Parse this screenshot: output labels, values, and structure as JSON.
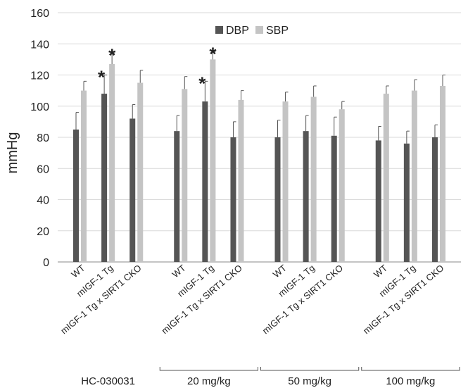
{
  "chart_data": {
    "type": "bar",
    "ylabel": "mmHg",
    "ylim": [
      0,
      160
    ],
    "yticks": [
      0,
      20,
      40,
      60,
      80,
      100,
      120,
      140,
      160
    ],
    "grid": true,
    "legend_position": "top-center",
    "categories": [
      "WT",
      "mIGF-1 Tg",
      "mIGF-1 Tg x SIRT1 CKO"
    ],
    "groups": [
      {
        "label": "HC-030031",
        "values": {
          "DBP": [
            85,
            108,
            92
          ],
          "DBP_err": [
            11,
            12,
            9
          ],
          "SBP": [
            110,
            127,
            115
          ],
          "SBP_err": [
            6,
            7,
            8
          ]
        },
        "significant": [
          false,
          true,
          false
        ]
      },
      {
        "label": "20 mg/kg",
        "values": {
          "DBP": [
            84,
            103,
            80
          ],
          "DBP_err": [
            10,
            13,
            10
          ],
          "SBP": [
            111,
            130,
            104
          ],
          "SBP_err": [
            8,
            5,
            6
          ]
        },
        "significant": [
          false,
          true,
          false
        ]
      },
      {
        "label": "50 mg/kg",
        "values": {
          "DBP": [
            80,
            84,
            81
          ],
          "DBP_err": [
            11,
            10,
            12
          ],
          "SBP": [
            103,
            106,
            98
          ],
          "SBP_err": [
            6,
            7,
            5
          ]
        },
        "significant": [
          false,
          false,
          false
        ]
      },
      {
        "label": "100 mg/kg",
        "values": {
          "DBP": [
            78,
            76,
            80
          ],
          "DBP_err": [
            9,
            8,
            8
          ],
          "SBP": [
            108,
            110,
            113
          ],
          "SBP_err": [
            5,
            7,
            7
          ]
        },
        "significant": [
          false,
          false,
          false
        ]
      }
    ],
    "series": [
      {
        "name": "DBP",
        "color": "#555555"
      },
      {
        "name": "SBP",
        "color": "#c4c4c4"
      }
    ],
    "annotation_symbol": "*"
  }
}
